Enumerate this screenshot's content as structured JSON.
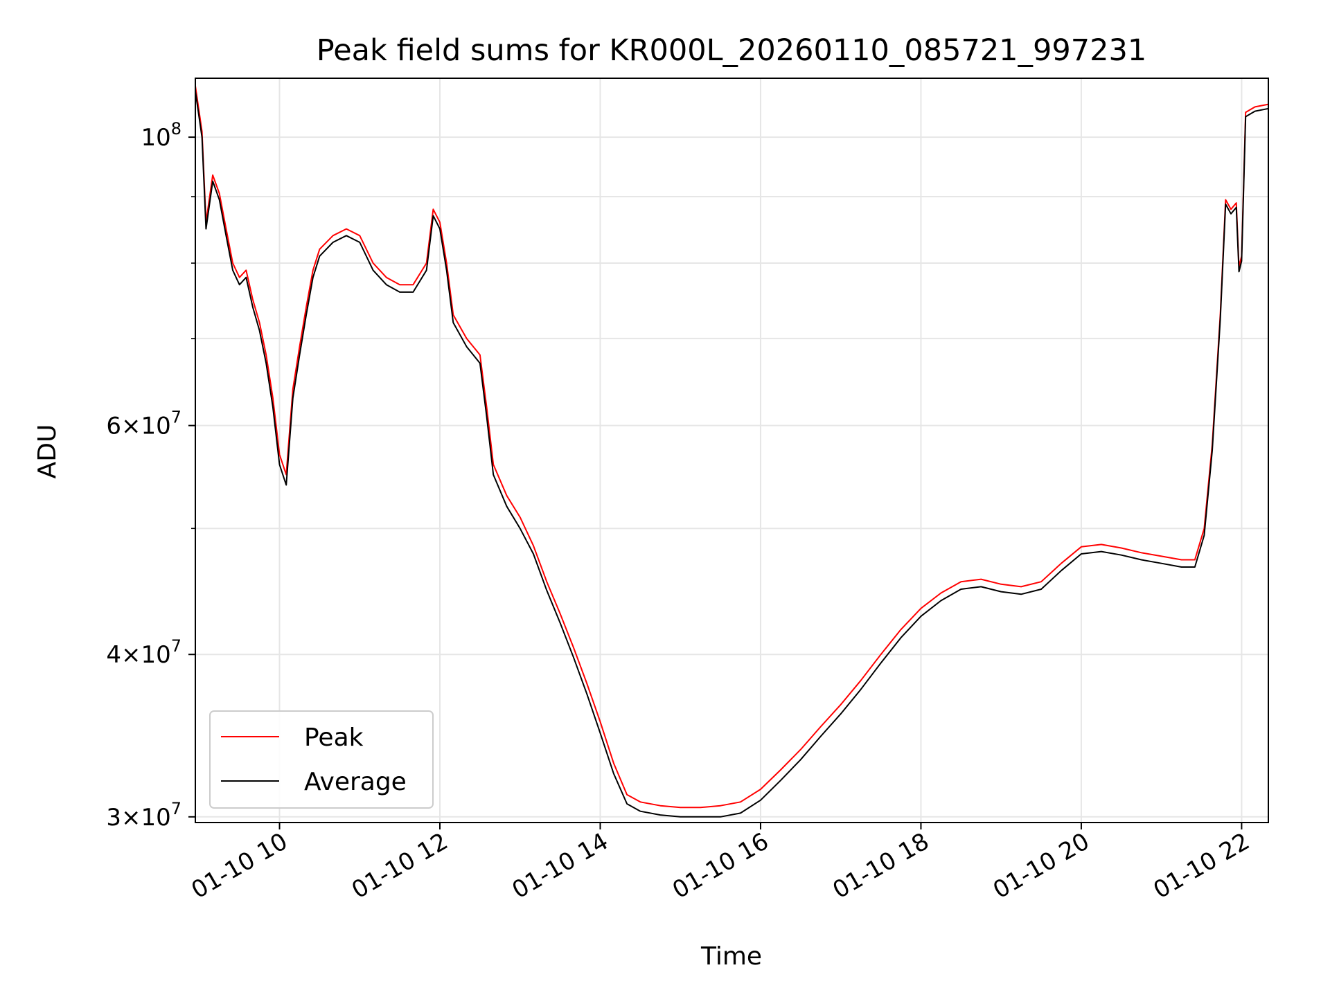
{
  "chart_data": {
    "type": "line",
    "title": "Peak field sums for KR000L_20260110_085721_997231",
    "xlabel": "Time",
    "ylabel": "ADU",
    "yscale": "log",
    "xlim": [
      "2026-01-10 08:57",
      "2026-01-10 22:20"
    ],
    "ylim": [
      29700000,
      111000000
    ],
    "grid": true,
    "legend_position": "lower-left",
    "x_ticks": [
      {
        "time": "2026-01-10 10:00",
        "label": "01-10 10"
      },
      {
        "time": "2026-01-10 12:00",
        "label": "01-10 12"
      },
      {
        "time": "2026-01-10 14:00",
        "label": "01-10 14"
      },
      {
        "time": "2026-01-10 16:00",
        "label": "01-10 16"
      },
      {
        "time": "2026-01-10 18:00",
        "label": "01-10 18"
      },
      {
        "time": "2026-01-10 20:00",
        "label": "01-10 20"
      },
      {
        "time": "2026-01-10 22:00",
        "label": "01-10 22"
      }
    ],
    "y_ticks": [
      {
        "value": 30000000,
        "base": "3×10",
        "exp": "7"
      },
      {
        "value": 40000000,
        "base": "4×10",
        "exp": "7"
      },
      {
        "value": 60000000,
        "base": "6×10",
        "exp": "7"
      },
      {
        "value": 100000000,
        "base": "10",
        "exp": "8"
      }
    ],
    "y_minor_ticks": [
      50000000,
      70000000,
      80000000,
      90000000
    ],
    "series": [
      {
        "name": "Peak",
        "color": "#ff0000",
        "points": [
          [
            "2026-01-10 08:57",
            109500000
          ],
          [
            "2026-01-10 09:02",
            101000000
          ],
          [
            "2026-01-10 09:05",
            86000000
          ],
          [
            "2026-01-10 09:10",
            93500000
          ],
          [
            "2026-01-10 09:15",
            90500000
          ],
          [
            "2026-01-10 09:20",
            85000000
          ],
          [
            "2026-01-10 09:25",
            80000000
          ],
          [
            "2026-01-10 09:30",
            78000000
          ],
          [
            "2026-01-10 09:35",
            79000000
          ],
          [
            "2026-01-10 09:40",
            75000000
          ],
          [
            "2026-01-10 09:45",
            72000000
          ],
          [
            "2026-01-10 09:50",
            68000000
          ],
          [
            "2026-01-10 09:55",
            63000000
          ],
          [
            "2026-01-10 10:00",
            57000000
          ],
          [
            "2026-01-10 10:05",
            55000000
          ],
          [
            "2026-01-10 10:10",
            64000000
          ],
          [
            "2026-01-10 10:15",
            69000000
          ],
          [
            "2026-01-10 10:20",
            74000000
          ],
          [
            "2026-01-10 10:25",
            79000000
          ],
          [
            "2026-01-10 10:30",
            82000000
          ],
          [
            "2026-01-10 10:40",
            84000000
          ],
          [
            "2026-01-10 10:50",
            85000000
          ],
          [
            "2026-01-10 11:00",
            84000000
          ],
          [
            "2026-01-10 11:10",
            80000000
          ],
          [
            "2026-01-10 11:20",
            78000000
          ],
          [
            "2026-01-10 11:30",
            77000000
          ],
          [
            "2026-01-10 11:40",
            77000000
          ],
          [
            "2026-01-10 11:50",
            80000000
          ],
          [
            "2026-01-10 11:55",
            88000000
          ],
          [
            "2026-01-10 12:00",
            86000000
          ],
          [
            "2026-01-10 12:05",
            80000000
          ],
          [
            "2026-01-10 12:10",
            73000000
          ],
          [
            "2026-01-10 12:20",
            70000000
          ],
          [
            "2026-01-10 12:30",
            68000000
          ],
          [
            "2026-01-10 12:35",
            62000000
          ],
          [
            "2026-01-10 12:40",
            56000000
          ],
          [
            "2026-01-10 12:50",
            53000000
          ],
          [
            "2026-01-10 13:00",
            51000000
          ],
          [
            "2026-01-10 13:10",
            48500000
          ],
          [
            "2026-01-10 13:20",
            45500000
          ],
          [
            "2026-01-10 13:30",
            43000000
          ],
          [
            "2026-01-10 13:40",
            40500000
          ],
          [
            "2026-01-10 13:50",
            38000000
          ],
          [
            "2026-01-10 14:00",
            35500000
          ],
          [
            "2026-01-10 14:10",
            33000000
          ],
          [
            "2026-01-10 14:20",
            31200000
          ],
          [
            "2026-01-10 14:30",
            30800000
          ],
          [
            "2026-01-10 14:45",
            30600000
          ],
          [
            "2026-01-10 15:00",
            30500000
          ],
          [
            "2026-01-10 15:15",
            30500000
          ],
          [
            "2026-01-10 15:30",
            30600000
          ],
          [
            "2026-01-10 15:45",
            30800000
          ],
          [
            "2026-01-10 16:00",
            31500000
          ],
          [
            "2026-01-10 16:15",
            32600000
          ],
          [
            "2026-01-10 16:30",
            33800000
          ],
          [
            "2026-01-10 16:45",
            35200000
          ],
          [
            "2026-01-10 17:00",
            36600000
          ],
          [
            "2026-01-10 17:15",
            38200000
          ],
          [
            "2026-01-10 17:30",
            40000000
          ],
          [
            "2026-01-10 17:45",
            41800000
          ],
          [
            "2026-01-10 18:00",
            43400000
          ],
          [
            "2026-01-10 18:15",
            44600000
          ],
          [
            "2026-01-10 18:30",
            45500000
          ],
          [
            "2026-01-10 18:45",
            45700000
          ],
          [
            "2026-01-10 19:00",
            45300000
          ],
          [
            "2026-01-10 19:15",
            45100000
          ],
          [
            "2026-01-10 19:30",
            45500000
          ],
          [
            "2026-01-10 19:45",
            47000000
          ],
          [
            "2026-01-10 20:00",
            48400000
          ],
          [
            "2026-01-10 20:15",
            48600000
          ],
          [
            "2026-01-10 20:30",
            48300000
          ],
          [
            "2026-01-10 20:45",
            47900000
          ],
          [
            "2026-01-10 21:00",
            47600000
          ],
          [
            "2026-01-10 21:15",
            47300000
          ],
          [
            "2026-01-10 21:25",
            47300000
          ],
          [
            "2026-01-10 21:32",
            50000000
          ],
          [
            "2026-01-10 21:38",
            58000000
          ],
          [
            "2026-01-10 21:44",
            73000000
          ],
          [
            "2026-01-10 21:48",
            89500000
          ],
          [
            "2026-01-10 21:52",
            88000000
          ],
          [
            "2026-01-10 21:56",
            89000000
          ],
          [
            "2026-01-10 21:58",
            79500000
          ],
          [
            "2026-01-10 22:00",
            81000000
          ],
          [
            "2026-01-10 22:03",
            104500000
          ],
          [
            "2026-01-10 22:10",
            105500000
          ],
          [
            "2026-01-10 22:20",
            106000000
          ]
        ]
      },
      {
        "name": "Average",
        "color": "#000000",
        "points": [
          [
            "2026-01-10 08:57",
            108500000
          ],
          [
            "2026-01-10 09:02",
            100000000
          ],
          [
            "2026-01-10 09:05",
            85000000
          ],
          [
            "2026-01-10 09:10",
            92500000
          ],
          [
            "2026-01-10 09:15",
            89500000
          ],
          [
            "2026-01-10 09:20",
            84000000
          ],
          [
            "2026-01-10 09:25",
            79000000
          ],
          [
            "2026-01-10 09:30",
            77000000
          ],
          [
            "2026-01-10 09:35",
            78000000
          ],
          [
            "2026-01-10 09:40",
            74000000
          ],
          [
            "2026-01-10 09:45",
            71000000
          ],
          [
            "2026-01-10 09:50",
            67000000
          ],
          [
            "2026-01-10 09:55",
            62000000
          ],
          [
            "2026-01-10 10:00",
            56000000
          ],
          [
            "2026-01-10 10:05",
            54000000
          ],
          [
            "2026-01-10 10:10",
            63000000
          ],
          [
            "2026-01-10 10:15",
            68000000
          ],
          [
            "2026-01-10 10:20",
            73000000
          ],
          [
            "2026-01-10 10:25",
            78000000
          ],
          [
            "2026-01-10 10:30",
            81000000
          ],
          [
            "2026-01-10 10:40",
            83000000
          ],
          [
            "2026-01-10 10:50",
            84000000
          ],
          [
            "2026-01-10 11:00",
            83000000
          ],
          [
            "2026-01-10 11:10",
            79000000
          ],
          [
            "2026-01-10 11:20",
            77000000
          ],
          [
            "2026-01-10 11:30",
            76000000
          ],
          [
            "2026-01-10 11:40",
            76000000
          ],
          [
            "2026-01-10 11:50",
            79000000
          ],
          [
            "2026-01-10 11:55",
            87000000
          ],
          [
            "2026-01-10 12:00",
            85000000
          ],
          [
            "2026-01-10 12:05",
            79000000
          ],
          [
            "2026-01-10 12:10",
            72000000
          ],
          [
            "2026-01-10 12:20",
            69000000
          ],
          [
            "2026-01-10 12:30",
            67000000
          ],
          [
            "2026-01-10 12:35",
            61000000
          ],
          [
            "2026-01-10 12:40",
            55000000
          ],
          [
            "2026-01-10 12:50",
            52000000
          ],
          [
            "2026-01-10 13:00",
            50000000
          ],
          [
            "2026-01-10 13:10",
            47800000
          ],
          [
            "2026-01-10 13:20",
            44800000
          ],
          [
            "2026-01-10 13:30",
            42300000
          ],
          [
            "2026-01-10 13:40",
            39800000
          ],
          [
            "2026-01-10 13:50",
            37300000
          ],
          [
            "2026-01-10 14:00",
            34800000
          ],
          [
            "2026-01-10 14:10",
            32400000
          ],
          [
            "2026-01-10 14:20",
            30700000
          ],
          [
            "2026-01-10 14:30",
            30300000
          ],
          [
            "2026-01-10 14:45",
            30100000
          ],
          [
            "2026-01-10 15:00",
            30000000
          ],
          [
            "2026-01-10 15:15",
            30000000
          ],
          [
            "2026-01-10 15:30",
            30000000
          ],
          [
            "2026-01-10 15:45",
            30200000
          ],
          [
            "2026-01-10 16:00",
            30900000
          ],
          [
            "2026-01-10 16:15",
            32000000
          ],
          [
            "2026-01-10 16:30",
            33200000
          ],
          [
            "2026-01-10 16:45",
            34600000
          ],
          [
            "2026-01-10 17:00",
            36000000
          ],
          [
            "2026-01-10 17:15",
            37600000
          ],
          [
            "2026-01-10 17:30",
            39400000
          ],
          [
            "2026-01-10 17:45",
            41200000
          ],
          [
            "2026-01-10 18:00",
            42800000
          ],
          [
            "2026-01-10 18:15",
            44000000
          ],
          [
            "2026-01-10 18:30",
            44900000
          ],
          [
            "2026-01-10 18:45",
            45100000
          ],
          [
            "2026-01-10 19:00",
            44700000
          ],
          [
            "2026-01-10 19:15",
            44500000
          ],
          [
            "2026-01-10 19:30",
            44900000
          ],
          [
            "2026-01-10 19:45",
            46400000
          ],
          [
            "2026-01-10 20:00",
            47800000
          ],
          [
            "2026-01-10 20:15",
            48000000
          ],
          [
            "2026-01-10 20:30",
            47700000
          ],
          [
            "2026-01-10 20:45",
            47300000
          ],
          [
            "2026-01-10 21:00",
            47000000
          ],
          [
            "2026-01-10 21:15",
            46700000
          ],
          [
            "2026-01-10 21:25",
            46700000
          ],
          [
            "2026-01-10 21:32",
            49400000
          ],
          [
            "2026-01-10 21:38",
            57400000
          ],
          [
            "2026-01-10 21:44",
            72400000
          ],
          [
            "2026-01-10 21:48",
            88800000
          ],
          [
            "2026-01-10 21:52",
            87300000
          ],
          [
            "2026-01-10 21:56",
            88300000
          ],
          [
            "2026-01-10 21:58",
            78800000
          ],
          [
            "2026-01-10 22:00",
            80300000
          ],
          [
            "2026-01-10 22:03",
            103700000
          ],
          [
            "2026-01-10 22:10",
            104700000
          ],
          [
            "2026-01-10 22:20",
            105200000
          ]
        ]
      }
    ]
  }
}
